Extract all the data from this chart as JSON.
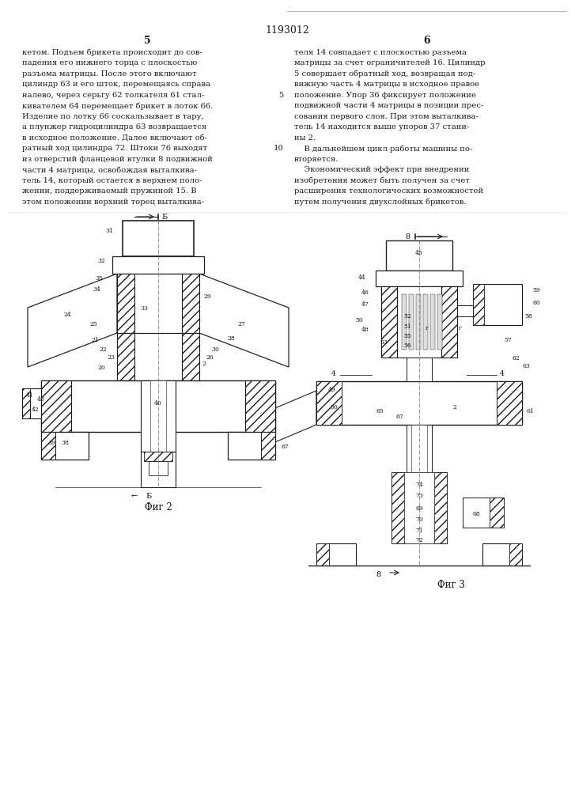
{
  "page_width": 7.07,
  "page_height": 10.0,
  "background_color": "#ffffff",
  "patent_number": "1193012",
  "col_left_num": "5",
  "col_right_num": "6",
  "text_left": [
    "кетом. Подъем брикета происходит до сов-",
    "падения его нижнего торца с плоскостью",
    "разъема матрицы. После этого включают",
    "цилиндр 63 и его шток, перемещаясь справа",
    "налево, через серьгу 62 толкателя 61 стал-",
    "кивателем 64 перемещает брикет в лоток 66.",
    "Изделие по лотку 66 соскальзывает в тару,",
    "а плунжер гидроцилиндра 63 возвращается",
    "в исходное положение. Далее включают об-",
    "ратный ход цилиндра 72. Штоки 76 выходят",
    "из отверстий фланцевой втулки 8 подвижной",
    "части 4 матрицы, освобождая выталкива-",
    "тель 14, который остается в верхнем поло-",
    "жении, поддерживаемый пружиной 15. В",
    "этом положении верхний торец выталкива-"
  ],
  "text_right": [
    "теля 14 совпадает с плоскостью разъема",
    "матрицы за счет ограничителей 16. Цилиндр",
    "5 совершает обратный ход, возвращая под-",
    "вижную часть 4 матрицы в исходное правое",
    "положение. Упор 36 фиксирует положение",
    "подвижной части 4 матрицы в позиции прес-",
    "сования первого слоя. При этом выталкива-",
    "тель 14 находится выше упоров 37 стани-",
    "ны 2.",
    "    В дальнейшем цикл работы машины по-",
    "вторяется.",
    "    Экономический эффект при внедрении",
    "изобретения может быть получен за счет",
    "расширения технологических возможностей",
    "путем получения двухслойных брикетов."
  ],
  "fig2_label": "Фиг 2",
  "fig3_label": "Фиг 3",
  "text_color": "#1a1a1a",
  "drawing_color": "#1a1a1a",
  "hatch_color": "#555555",
  "font_size_body": 7.2,
  "font_size_header": 9.0,
  "font_size_fig": 8.5,
  "font_size_label": 5.5
}
